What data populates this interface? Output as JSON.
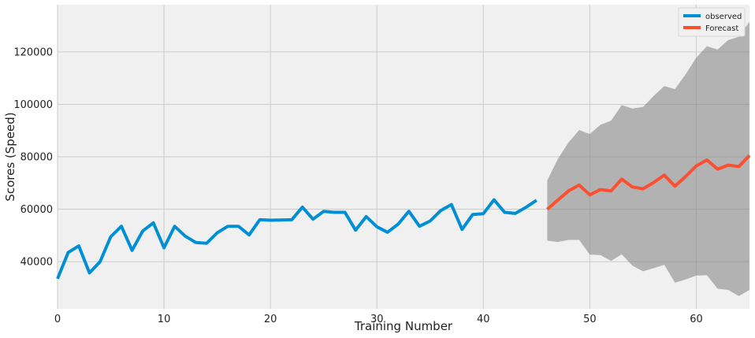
{
  "chart_data": {
    "type": "line",
    "title": "",
    "xlabel": "Training Number",
    "ylabel": "Scores (Speed)",
    "xlim": [
      0,
      65
    ],
    "ylim": [
      22000,
      138000
    ],
    "x_ticks": [
      0,
      10,
      20,
      30,
      40,
      50,
      60
    ],
    "x_tick_labels": [
      "0",
      "10",
      "20",
      "30",
      "40",
      "50",
      "60"
    ],
    "y_ticks": [
      40000,
      60000,
      80000,
      100000,
      120000
    ],
    "y_tick_labels": [
      "40000",
      "60000",
      "80000",
      "100000",
      "120000"
    ],
    "grid": true,
    "legend_position": "top-right",
    "legend": [
      "observed",
      "Forecast"
    ],
    "series": [
      {
        "name": "observed",
        "color": "#008fd5",
        "x": [
          0,
          1,
          2,
          3,
          4,
          5,
          6,
          7,
          8,
          9,
          10,
          11,
          12,
          13,
          14,
          15,
          16,
          17,
          18,
          19,
          20,
          21,
          22,
          23,
          24,
          25,
          26,
          27,
          28,
          29,
          30,
          31,
          32,
          33,
          34,
          35,
          36,
          37,
          38,
          39,
          40,
          41,
          42,
          43,
          44,
          45
        ],
        "values": [
          33500,
          43500,
          46000,
          35700,
          40000,
          49500,
          53500,
          44300,
          51700,
          54800,
          45300,
          53500,
          49700,
          47300,
          47000,
          51000,
          53500,
          53500,
          50200,
          56000,
          55800,
          55900,
          56000,
          60800,
          56200,
          59200,
          58800,
          58800,
          52000,
          57200,
          53300,
          51200,
          54300,
          59200,
          53500,
          55500,
          59500,
          61800,
          52300,
          58000,
          58300,
          63600,
          58800,
          58400,
          60700,
          63400
        ]
      },
      {
        "name": "Forecast",
        "color": "#fc4f30",
        "x": [
          46,
          47,
          48,
          49,
          50,
          51,
          52,
          53,
          54,
          55,
          56,
          57,
          58,
          59,
          60,
          61,
          62,
          63,
          64,
          65
        ],
        "values": [
          60000,
          63500,
          67000,
          69200,
          65500,
          67500,
          67000,
          71500,
          68500,
          67800,
          70200,
          73000,
          68800,
          72500,
          76500,
          78800,
          75300,
          76800,
          76300,
          80500
        ]
      }
    ],
    "confidence_interval": {
      "x": [
        46,
        47,
        48,
        49,
        50,
        51,
        52,
        53,
        54,
        55,
        56,
        57,
        58,
        59,
        60,
        61,
        62,
        63,
        64,
        65
      ],
      "lower": [
        48000,
        47500,
        48300,
        48300,
        42700,
        42500,
        40300,
        42800,
        38500,
        36300,
        37500,
        38800,
        32000,
        33200,
        34700,
        34800,
        29700,
        29200,
        26900,
        29200
      ],
      "upper": [
        71000,
        79200,
        85500,
        90200,
        88700,
        92200,
        93800,
        99700,
        98400,
        99000,
        103200,
        107000,
        105800,
        111500,
        117800,
        122200,
        120900,
        124500,
        125800,
        131500
      ]
    }
  }
}
